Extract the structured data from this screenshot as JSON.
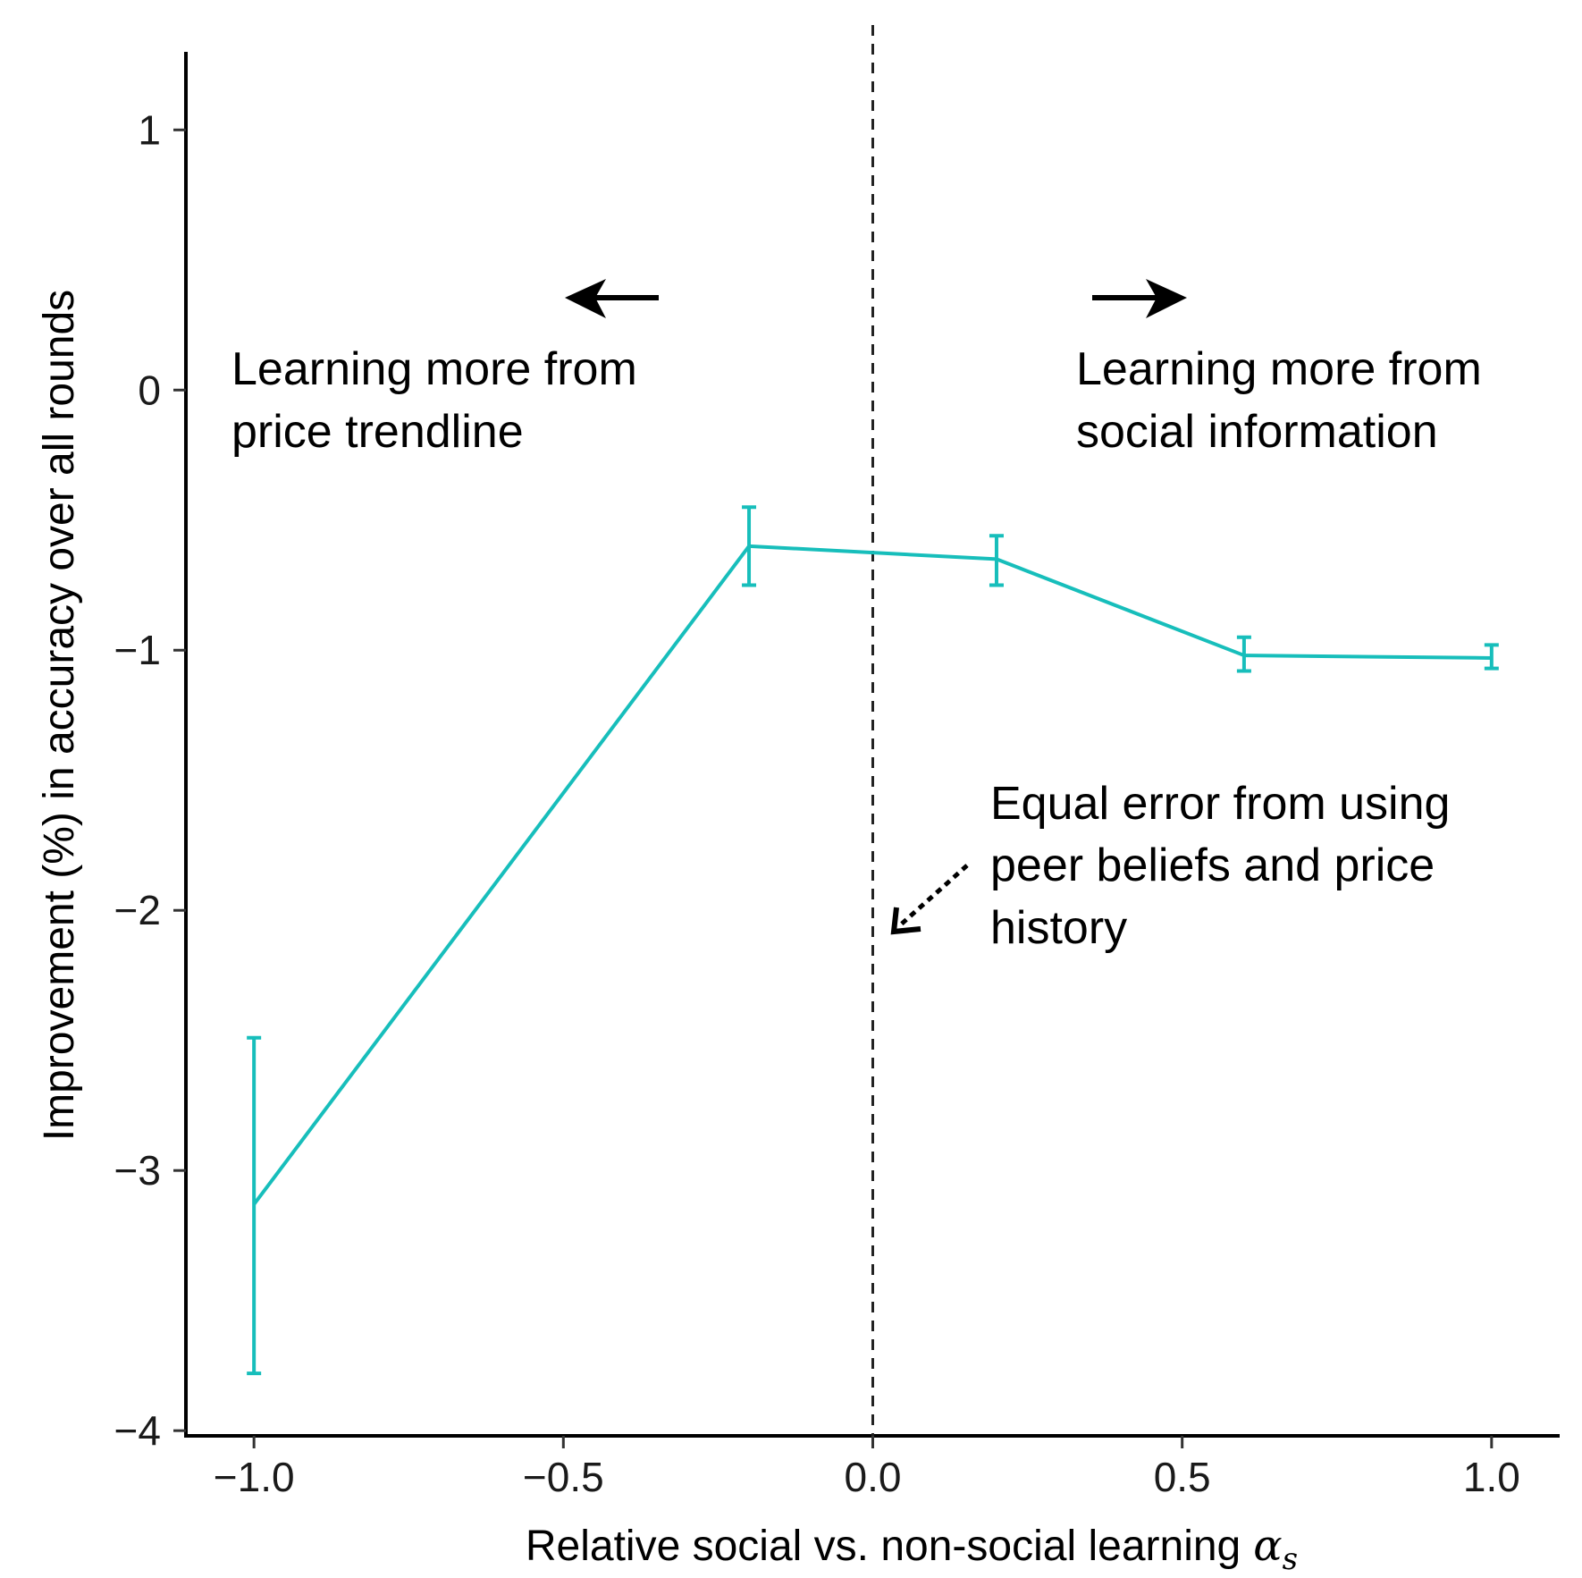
{
  "chart_data": {
    "type": "line",
    "title": "",
    "xlabel": "Relative social vs. non-social learning",
    "xlabel_symbol": "α",
    "xlabel_subscript": "s",
    "ylabel": "Improvement (%) in accuracy over all rounds",
    "xlim": [
      -1.11,
      1.11
    ],
    "ylim": [
      -4.02,
      1.3
    ],
    "xticks": [
      -1.0,
      -0.5,
      0.0,
      0.5,
      1.0
    ],
    "xtick_labels": [
      "−1.0",
      "−0.5",
      "0.0",
      "0.5",
      "1.0"
    ],
    "yticks": [
      1,
      0,
      -1,
      -2,
      -3,
      -4
    ],
    "ytick_labels": [
      "1",
      "0",
      "−1",
      "−2",
      "−3",
      "−4"
    ],
    "grid": false,
    "reference_line_x": 0.0,
    "series": [
      {
        "color": "#17BEBB",
        "points": [
          {
            "x": -1.0,
            "y": -3.13,
            "ymin": -3.78,
            "ymax": -2.49
          },
          {
            "x": -0.2,
            "y": -0.6,
            "ymin": -0.75,
            "ymax": -0.45
          },
          {
            "x": 0.2,
            "y": -0.65,
            "ymin": -0.75,
            "ymax": -0.56
          },
          {
            "x": 0.6,
            "y": -1.02,
            "ymin": -1.08,
            "ymax": -0.95
          },
          {
            "x": 1.0,
            "y": -1.03,
            "ymin": -1.07,
            "ymax": -0.98
          }
        ]
      }
    ],
    "annotations": {
      "left": {
        "lines": [
          "Learning more from",
          "price trendline"
        ],
        "arrow": "left"
      },
      "right": {
        "lines": [
          "Learning more from",
          "social information"
        ],
        "arrow": "right"
      },
      "center": {
        "lines": [
          "Equal error from using",
          "peer beliefs and price",
          "history"
        ],
        "arrow": "dotted-pointer"
      }
    }
  }
}
